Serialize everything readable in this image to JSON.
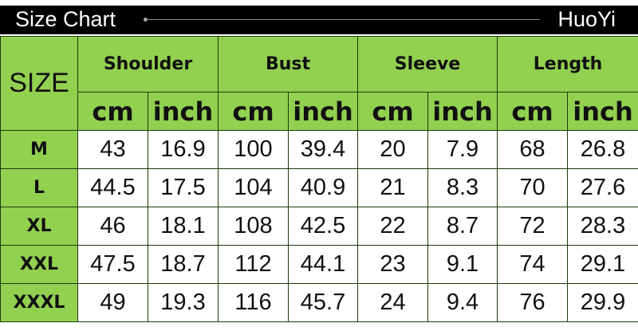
{
  "header": {
    "title": "Size Chart",
    "brand": "HuoYi"
  },
  "colors": {
    "header_green": "#92d050",
    "bar": "#000000"
  },
  "table": {
    "size_label": "SIZE",
    "groups": [
      "Shoulder",
      "Bust",
      "Sleeve",
      "Length"
    ],
    "units": [
      "cm",
      "inch"
    ],
    "rows": [
      {
        "size": "M",
        "values": [
          "43",
          "16.9",
          "100",
          "39.4",
          "20",
          "7.9",
          "68",
          "26.8"
        ]
      },
      {
        "size": "L",
        "values": [
          "44.5",
          "17.5",
          "104",
          "40.9",
          "21",
          "8.3",
          "70",
          "27.6"
        ]
      },
      {
        "size": "XL",
        "values": [
          "46",
          "18.1",
          "108",
          "42.5",
          "22",
          "8.7",
          "72",
          "28.3"
        ]
      },
      {
        "size": "XXL",
        "values": [
          "47.5",
          "18.7",
          "112",
          "44.1",
          "23",
          "9.1",
          "74",
          "29.1"
        ]
      },
      {
        "size": "XXXL",
        "values": [
          "49",
          "19.3",
          "116",
          "45.7",
          "24",
          "9.4",
          "76",
          "29.9"
        ]
      }
    ]
  }
}
